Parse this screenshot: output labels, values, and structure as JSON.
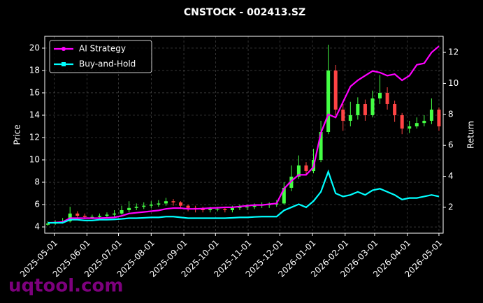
{
  "chart_data": {
    "type": "candlestick",
    "title": "CNSTOCK - 002413.SZ",
    "ylabel": "Price",
    "y2label": "Return",
    "watermark": "uqtool.com",
    "x": [
      "2025-04-25",
      "2025-05-02",
      "2025-05-09",
      "2025-05-16",
      "2025-05-23",
      "2025-05-30",
      "2025-06-06",
      "2025-06-13",
      "2025-06-20",
      "2025-06-27",
      "2025-07-04",
      "2025-07-11",
      "2025-07-18",
      "2025-07-25",
      "2025-08-01",
      "2025-08-08",
      "2025-08-15",
      "2025-08-22",
      "2025-08-29",
      "2025-09-05",
      "2025-09-12",
      "2025-09-19",
      "2025-09-26",
      "2025-10-03",
      "2025-10-10",
      "2025-10-17",
      "2025-10-24",
      "2025-10-31",
      "2025-11-07",
      "2025-11-14",
      "2025-11-21",
      "2025-11-28",
      "2025-12-05",
      "2025-12-12",
      "2025-12-19",
      "2025-12-26",
      "2026-01-02",
      "2026-01-09",
      "2026-01-16",
      "2026-01-23",
      "2026-01-30",
      "2026-02-06",
      "2026-02-13",
      "2026-02-20",
      "2026-02-27",
      "2026-03-06",
      "2026-03-13",
      "2026-03-20",
      "2026-03-27",
      "2026-04-03",
      "2026-04-10",
      "2026-04-17",
      "2026-04-24",
      "2026-05-01"
    ],
    "open": [
      4.2,
      4.3,
      4.4,
      4.5,
      5.2,
      5.0,
      4.9,
      4.9,
      5.0,
      5.1,
      5.2,
      5.5,
      5.7,
      5.8,
      5.9,
      6.0,
      6.1,
      6.3,
      6.2,
      5.9,
      5.7,
      5.6,
      5.5,
      5.6,
      5.6,
      5.5,
      5.7,
      5.8,
      5.8,
      5.9,
      6.0,
      6.0,
      6.1,
      7.5,
      8.5,
      9.5,
      9.0,
      10.0,
      12.5,
      18.0,
      14.5,
      13.5,
      14.0,
      15.0,
      14.0,
      15.5,
      16.0,
      15.0,
      14.0,
      12.8,
      13.0,
      13.3,
      13.5,
      14.5
    ],
    "high": [
      4.5,
      4.6,
      4.8,
      5.8,
      5.4,
      5.2,
      5.1,
      5.2,
      5.3,
      5.5,
      5.9,
      6.3,
      6.1,
      6.2,
      6.3,
      6.4,
      6.6,
      6.5,
      6.3,
      6.0,
      5.9,
      5.8,
      5.8,
      5.8,
      5.8,
      5.9,
      6.0,
      6.0,
      6.1,
      6.2,
      6.2,
      6.4,
      8.0,
      9.5,
      10.4,
      9.8,
      11.0,
      13.5,
      20.3,
      18.5,
      15.0,
      15.2,
      15.6,
      15.4,
      16.2,
      17.6,
      16.5,
      15.3,
      14.2,
      13.5,
      13.8,
      14.0,
      15.5,
      14.7
    ],
    "low": [
      4.1,
      4.2,
      4.3,
      4.4,
      4.8,
      4.7,
      4.7,
      4.8,
      4.8,
      4.9,
      5.1,
      5.3,
      5.5,
      5.6,
      5.7,
      5.8,
      5.9,
      5.9,
      5.6,
      5.4,
      5.3,
      5.3,
      5.3,
      5.4,
      5.3,
      5.3,
      5.5,
      5.5,
      5.6,
      5.7,
      5.7,
      5.8,
      6.0,
      7.2,
      8.3,
      8.6,
      8.8,
      9.8,
      12.3,
      14.0,
      12.6,
      13.0,
      13.6,
      13.5,
      13.8,
      15.0,
      14.5,
      13.4,
      12.3,
      12.4,
      12.8,
      13.0,
      13.2,
      12.6
    ],
    "close": [
      4.3,
      4.4,
      4.5,
      5.2,
      5.0,
      4.9,
      4.9,
      5.0,
      5.1,
      5.2,
      5.5,
      5.7,
      5.8,
      5.9,
      6.0,
      6.1,
      6.3,
      6.2,
      5.9,
      5.7,
      5.6,
      5.5,
      5.6,
      5.6,
      5.5,
      5.7,
      5.8,
      5.8,
      5.9,
      6.0,
      6.0,
      6.1,
      7.5,
      8.5,
      9.5,
      9.0,
      10.0,
      12.5,
      18.0,
      14.5,
      13.5,
      14.0,
      15.0,
      14.0,
      15.5,
      16.0,
      15.0,
      14.0,
      12.8,
      13.0,
      13.3,
      13.5,
      14.5,
      13.0
    ],
    "up_color": "#44ff44",
    "down_color": "#ff4444",
    "series": [
      {
        "name": "AI Strategy",
        "color": "#ff00ff",
        "axis": "y2",
        "marker": "circle",
        "values": [
          1.0,
          1.02,
          1.05,
          1.3,
          1.3,
          1.3,
          1.3,
          1.3,
          1.32,
          1.35,
          1.45,
          1.6,
          1.65,
          1.7,
          1.75,
          1.8,
          1.9,
          1.95,
          1.95,
          1.9,
          1.9,
          1.92,
          1.95,
          1.97,
          2.0,
          2.0,
          2.05,
          2.1,
          2.15,
          2.15,
          2.2,
          2.25,
          3.2,
          3.7,
          4.1,
          4.1,
          4.6,
          6.8,
          8.0,
          7.8,
          8.8,
          9.8,
          10.2,
          10.5,
          10.8,
          10.7,
          10.5,
          10.6,
          10.2,
          10.5,
          11.2,
          11.3,
          12.0,
          12.4
        ]
      },
      {
        "name": "Buy-and-Hold",
        "color": "#00ffff",
        "axis": "y2",
        "marker": "square",
        "values": [
          1.0,
          1.0,
          1.0,
          1.2,
          1.2,
          1.15,
          1.15,
          1.2,
          1.2,
          1.22,
          1.25,
          1.3,
          1.3,
          1.32,
          1.35,
          1.35,
          1.4,
          1.4,
          1.35,
          1.3,
          1.3,
          1.3,
          1.3,
          1.3,
          1.3,
          1.32,
          1.35,
          1.35,
          1.38,
          1.4,
          1.4,
          1.4,
          1.8,
          2.0,
          2.2,
          2.0,
          2.4,
          3.0,
          4.3,
          2.9,
          2.7,
          2.8,
          3.0,
          2.8,
          3.1,
          3.2,
          3.0,
          2.8,
          2.5,
          2.6,
          2.6,
          2.7,
          2.8,
          2.7
        ]
      }
    ],
    "xlim": [
      "2025-04-22",
      "2026-05-05"
    ],
    "xticks": [
      "2025-05-01",
      "2025-06-01",
      "2025-07-01",
      "2025-08-01",
      "2025-09-01",
      "2025-10-01",
      "2025-11-01",
      "2025-12-01",
      "2026-01-01",
      "2026-02-01",
      "2026-03-01",
      "2026-04-01",
      "2026-05-01"
    ],
    "ylim": [
      3.44,
      21.06
    ],
    "yticks": [
      4,
      6,
      8,
      10,
      12,
      14,
      16,
      18,
      20
    ],
    "y2lim": [
      0.33,
      13.04
    ],
    "y2ticks": [
      2,
      4,
      6,
      8,
      10,
      12
    ],
    "grid": true,
    "legend": "upper left"
  }
}
